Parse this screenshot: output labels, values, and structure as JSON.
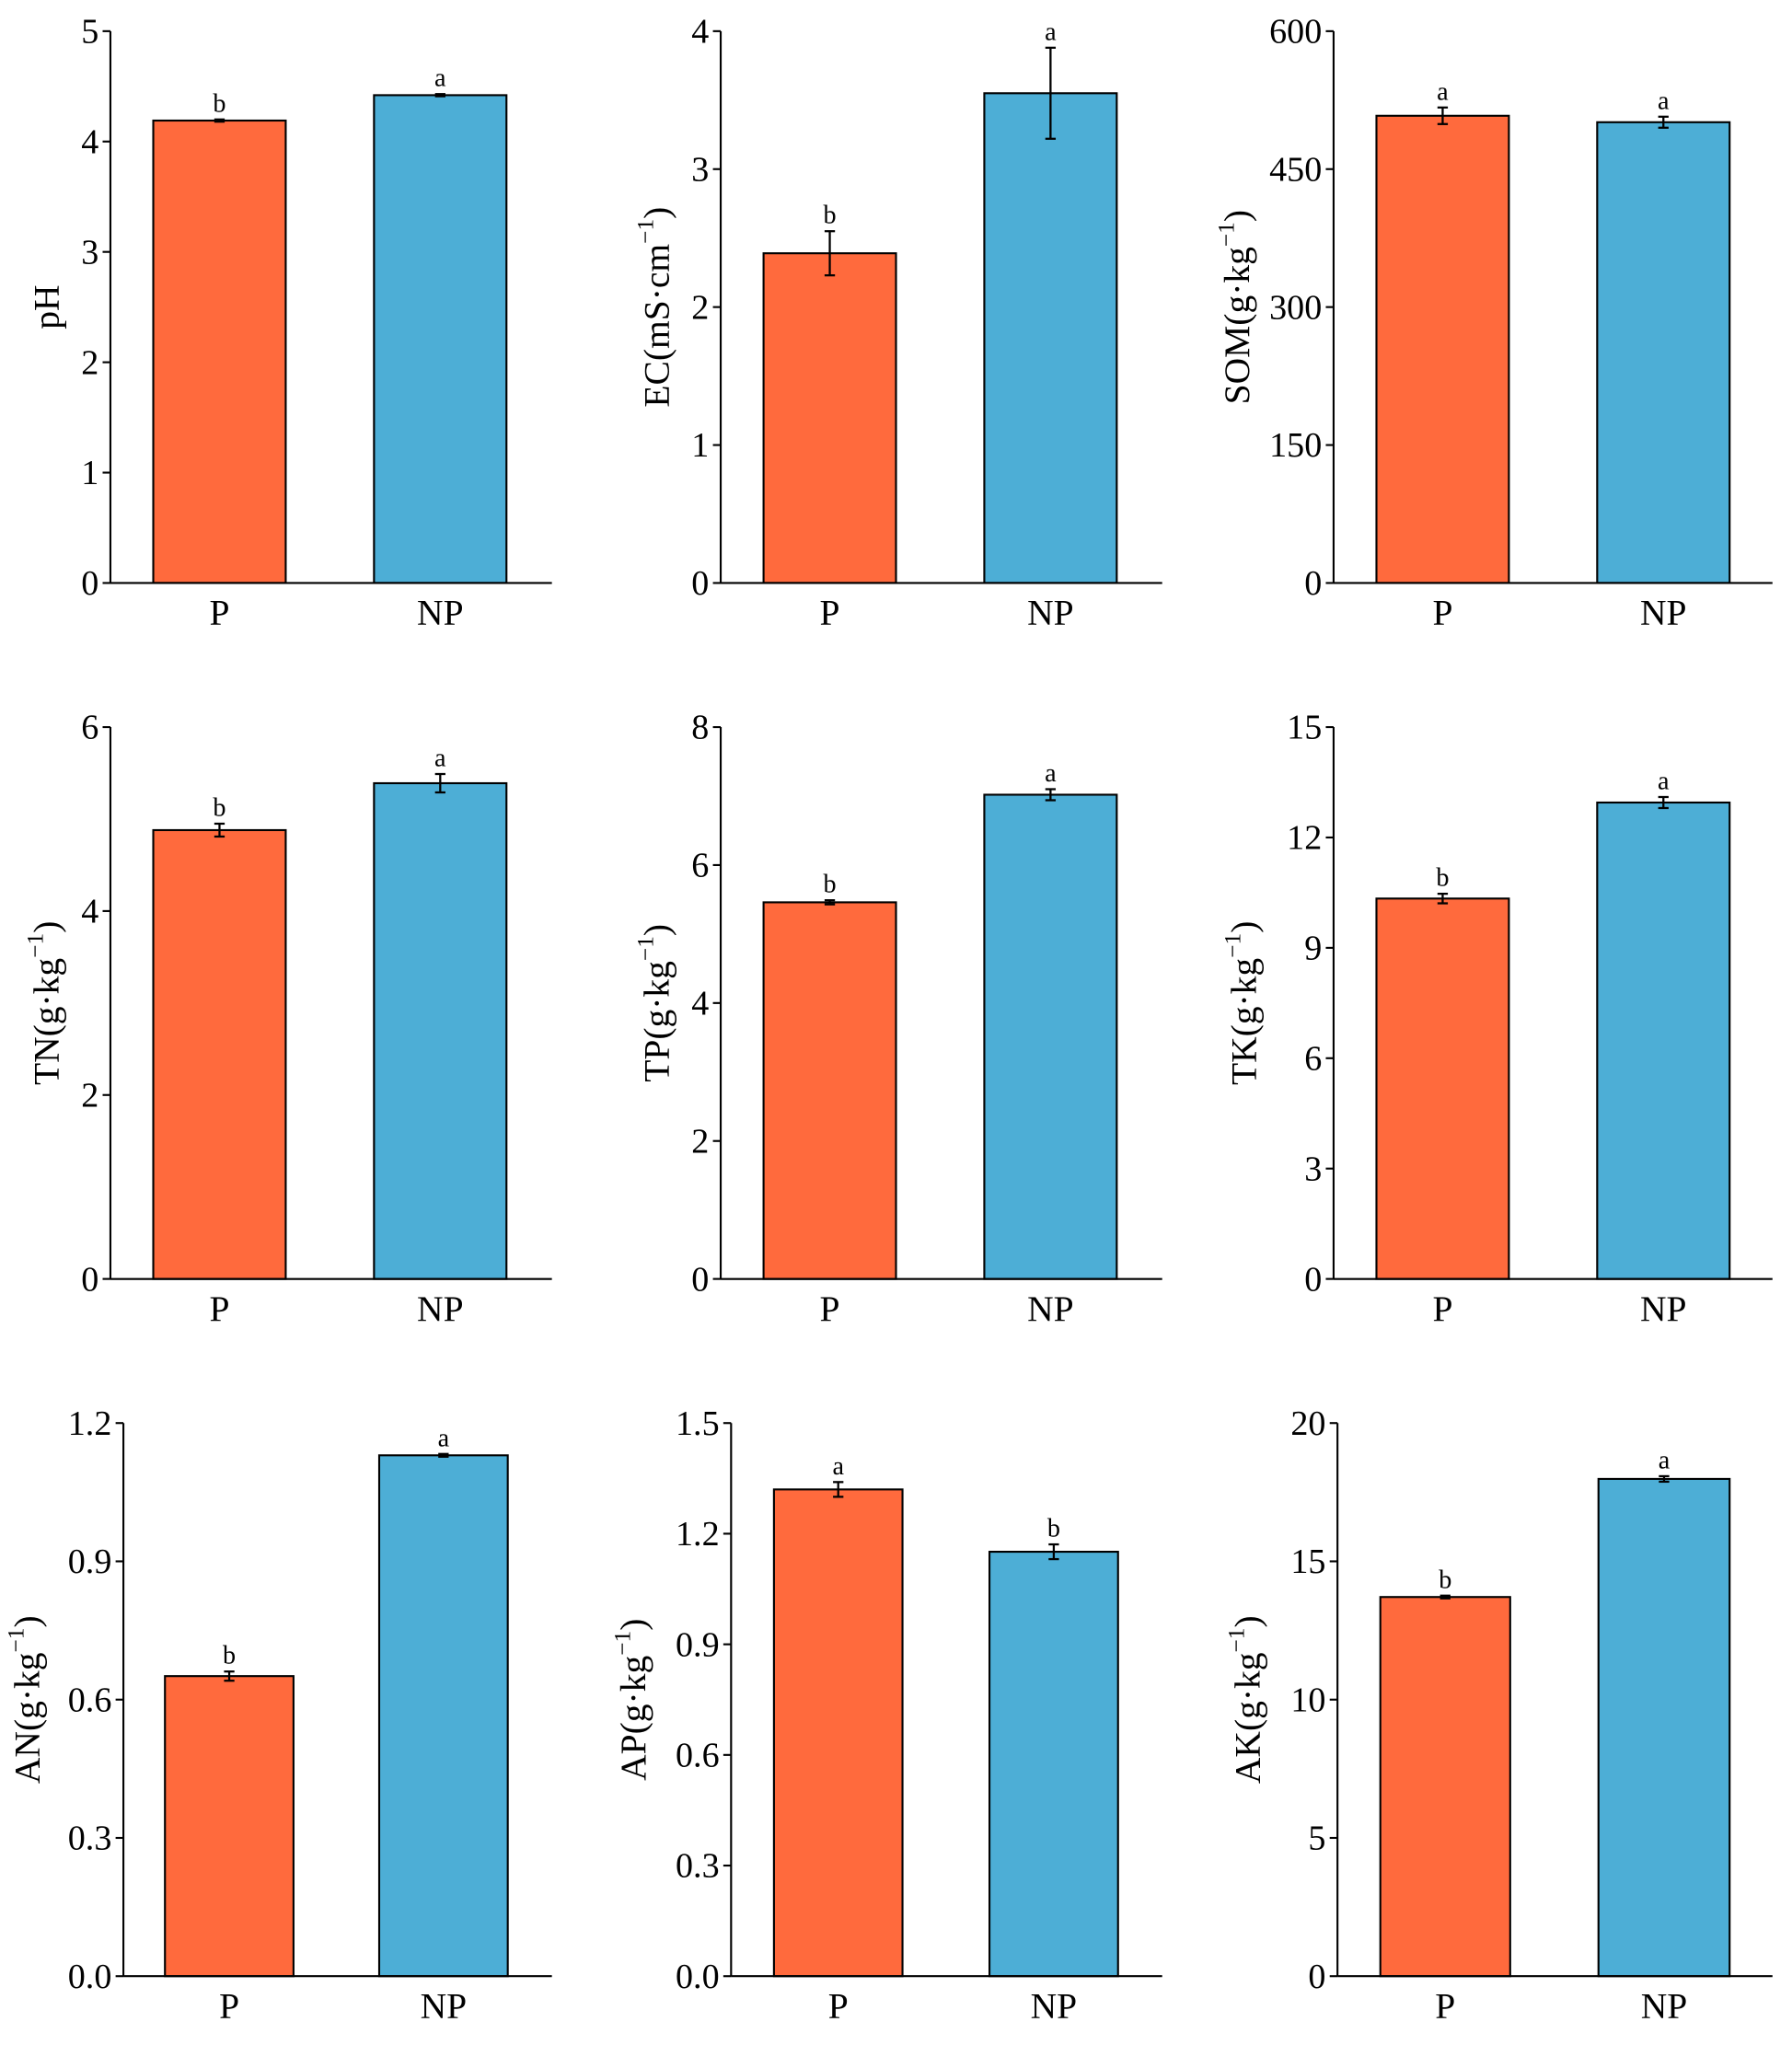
{
  "chart_data": [
    {
      "type": "bar",
      "id": "ph",
      "ylabel": {
        "main": "pH",
        "sup": "",
        "close": ""
      },
      "categories": [
        "P",
        "NP"
      ],
      "values": [
        4.19,
        4.42
      ],
      "errors": [
        0.01,
        0.01
      ],
      "letters": [
        "b",
        "a"
      ],
      "ylim": [
        0,
        5
      ],
      "yticks": [
        "0",
        "1",
        "2",
        "3",
        "4",
        "5"
      ]
    },
    {
      "type": "bar",
      "id": "ec",
      "ylabel": {
        "main": "EC(mS·cm",
        "sup": "−1",
        "close": ")"
      },
      "categories": [
        "P",
        "NP"
      ],
      "values": [
        2.39,
        3.55
      ],
      "errors": [
        0.16,
        0.33
      ],
      "letters": [
        "b",
        "a"
      ],
      "ylim": [
        0,
        4
      ],
      "yticks": [
        "0",
        "1",
        "2",
        "3",
        "4"
      ]
    },
    {
      "type": "bar",
      "id": "som",
      "ylabel": {
        "main": "SOM(g·kg",
        "sup": "−1",
        "close": ")"
      },
      "categories": [
        "P",
        "NP"
      ],
      "values": [
        508,
        501
      ],
      "errors": [
        9,
        6
      ],
      "letters": [
        "a",
        "a"
      ],
      "ylim": [
        0,
        600
      ],
      "yticks": [
        "0",
        "150",
        "300",
        "450",
        "600"
      ]
    },
    {
      "type": "bar",
      "id": "tn",
      "ylabel": {
        "main": "TN(g·kg",
        "sup": "−1",
        "close": ")"
      },
      "categories": [
        "P",
        "NP"
      ],
      "values": [
        4.88,
        5.39
      ],
      "errors": [
        0.07,
        0.1
      ],
      "letters": [
        "b",
        "a"
      ],
      "ylim": [
        0,
        6
      ],
      "yticks": [
        "0",
        "2",
        "4",
        "6"
      ]
    },
    {
      "type": "bar",
      "id": "tp",
      "ylabel": {
        "main": "TP(g·kg",
        "sup": "−1",
        "close": ")"
      },
      "categories": [
        "P",
        "NP"
      ],
      "values": [
        5.46,
        7.02
      ],
      "errors": [
        0.03,
        0.08
      ],
      "letters": [
        "b",
        "a"
      ],
      "ylim": [
        0,
        8
      ],
      "yticks": [
        "0",
        "2",
        "4",
        "6",
        "8"
      ]
    },
    {
      "type": "bar",
      "id": "tk",
      "ylabel": {
        "main": "TK(g·kg",
        "sup": "−1",
        "close": ")"
      },
      "categories": [
        "P",
        "NP"
      ],
      "values": [
        10.34,
        12.95
      ],
      "errors": [
        0.13,
        0.15
      ],
      "letters": [
        "b",
        "a"
      ],
      "ylim": [
        0,
        15
      ],
      "yticks": [
        "0",
        "3",
        "6",
        "9",
        "12",
        "15"
      ]
    },
    {
      "type": "bar",
      "id": "an",
      "ylabel": {
        "main": "AN(g·kg",
        "sup": "−1",
        "close": ")"
      },
      "categories": [
        "P",
        "NP"
      ],
      "values": [
        0.651,
        1.13
      ],
      "errors": [
        0.01,
        0.003
      ],
      "letters": [
        "b",
        "a"
      ],
      "ylim": [
        0,
        1.2
      ],
      "yticks": [
        "0.0",
        "0.3",
        "0.6",
        "0.9",
        "1.2"
      ]
    },
    {
      "type": "bar",
      "id": "ap",
      "ylabel": {
        "main": "AP(g·kg",
        "sup": "−1",
        "close": ")"
      },
      "categories": [
        "P",
        "NP"
      ],
      "values": [
        1.32,
        1.151
      ],
      "errors": [
        0.02,
        0.02
      ],
      "letters": [
        "a",
        "b"
      ],
      "ylim": [
        0,
        1.5
      ],
      "yticks": [
        "0.0",
        "0.3",
        "0.6",
        "0.9",
        "1.2",
        "1.5"
      ]
    },
    {
      "type": "bar",
      "id": "ak",
      "ylabel": {
        "main": "AK(g·kg",
        "sup": "−1",
        "close": ")"
      },
      "categories": [
        "P",
        "NP"
      ],
      "values": [
        13.71,
        17.98
      ],
      "errors": [
        0.05,
        0.1
      ],
      "letters": [
        "b",
        "a"
      ],
      "ylim": [
        0,
        20
      ],
      "yticks": [
        "0",
        "5",
        "10",
        "15",
        "20"
      ]
    }
  ],
  "colors": {
    "P": "#FF6A3D",
    "NP": "#4DAED6"
  }
}
